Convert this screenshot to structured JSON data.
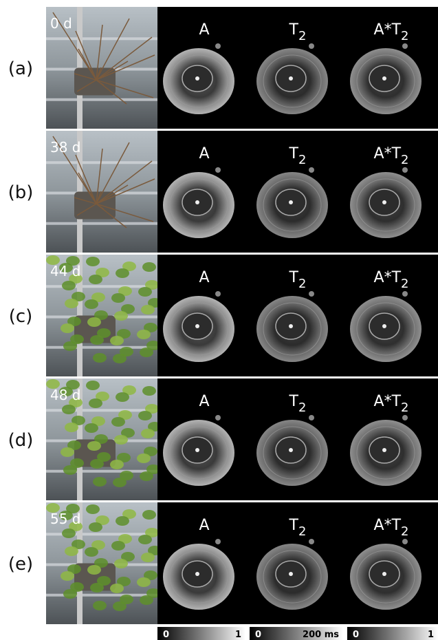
{
  "rows": [
    {
      "label": "(a)",
      "day": "0 d"
    },
    {
      "label": "(b)",
      "day": "38 d"
    },
    {
      "label": "(c)",
      "day": "44 d"
    },
    {
      "label": "(d)",
      "day": "48 d"
    },
    {
      "label": "(e)",
      "day": "55 d"
    }
  ],
  "panel_titles": [
    {
      "base": "A"
    },
    {
      "base": "T",
      "sub": "2"
    },
    {
      "base": "A*T",
      "sub": "2"
    }
  ],
  "colorbars": [
    {
      "min": "0",
      "max": "1"
    },
    {
      "min": "0",
      "max": "200 ms"
    },
    {
      "min": "0",
      "max": "1"
    }
  ]
}
